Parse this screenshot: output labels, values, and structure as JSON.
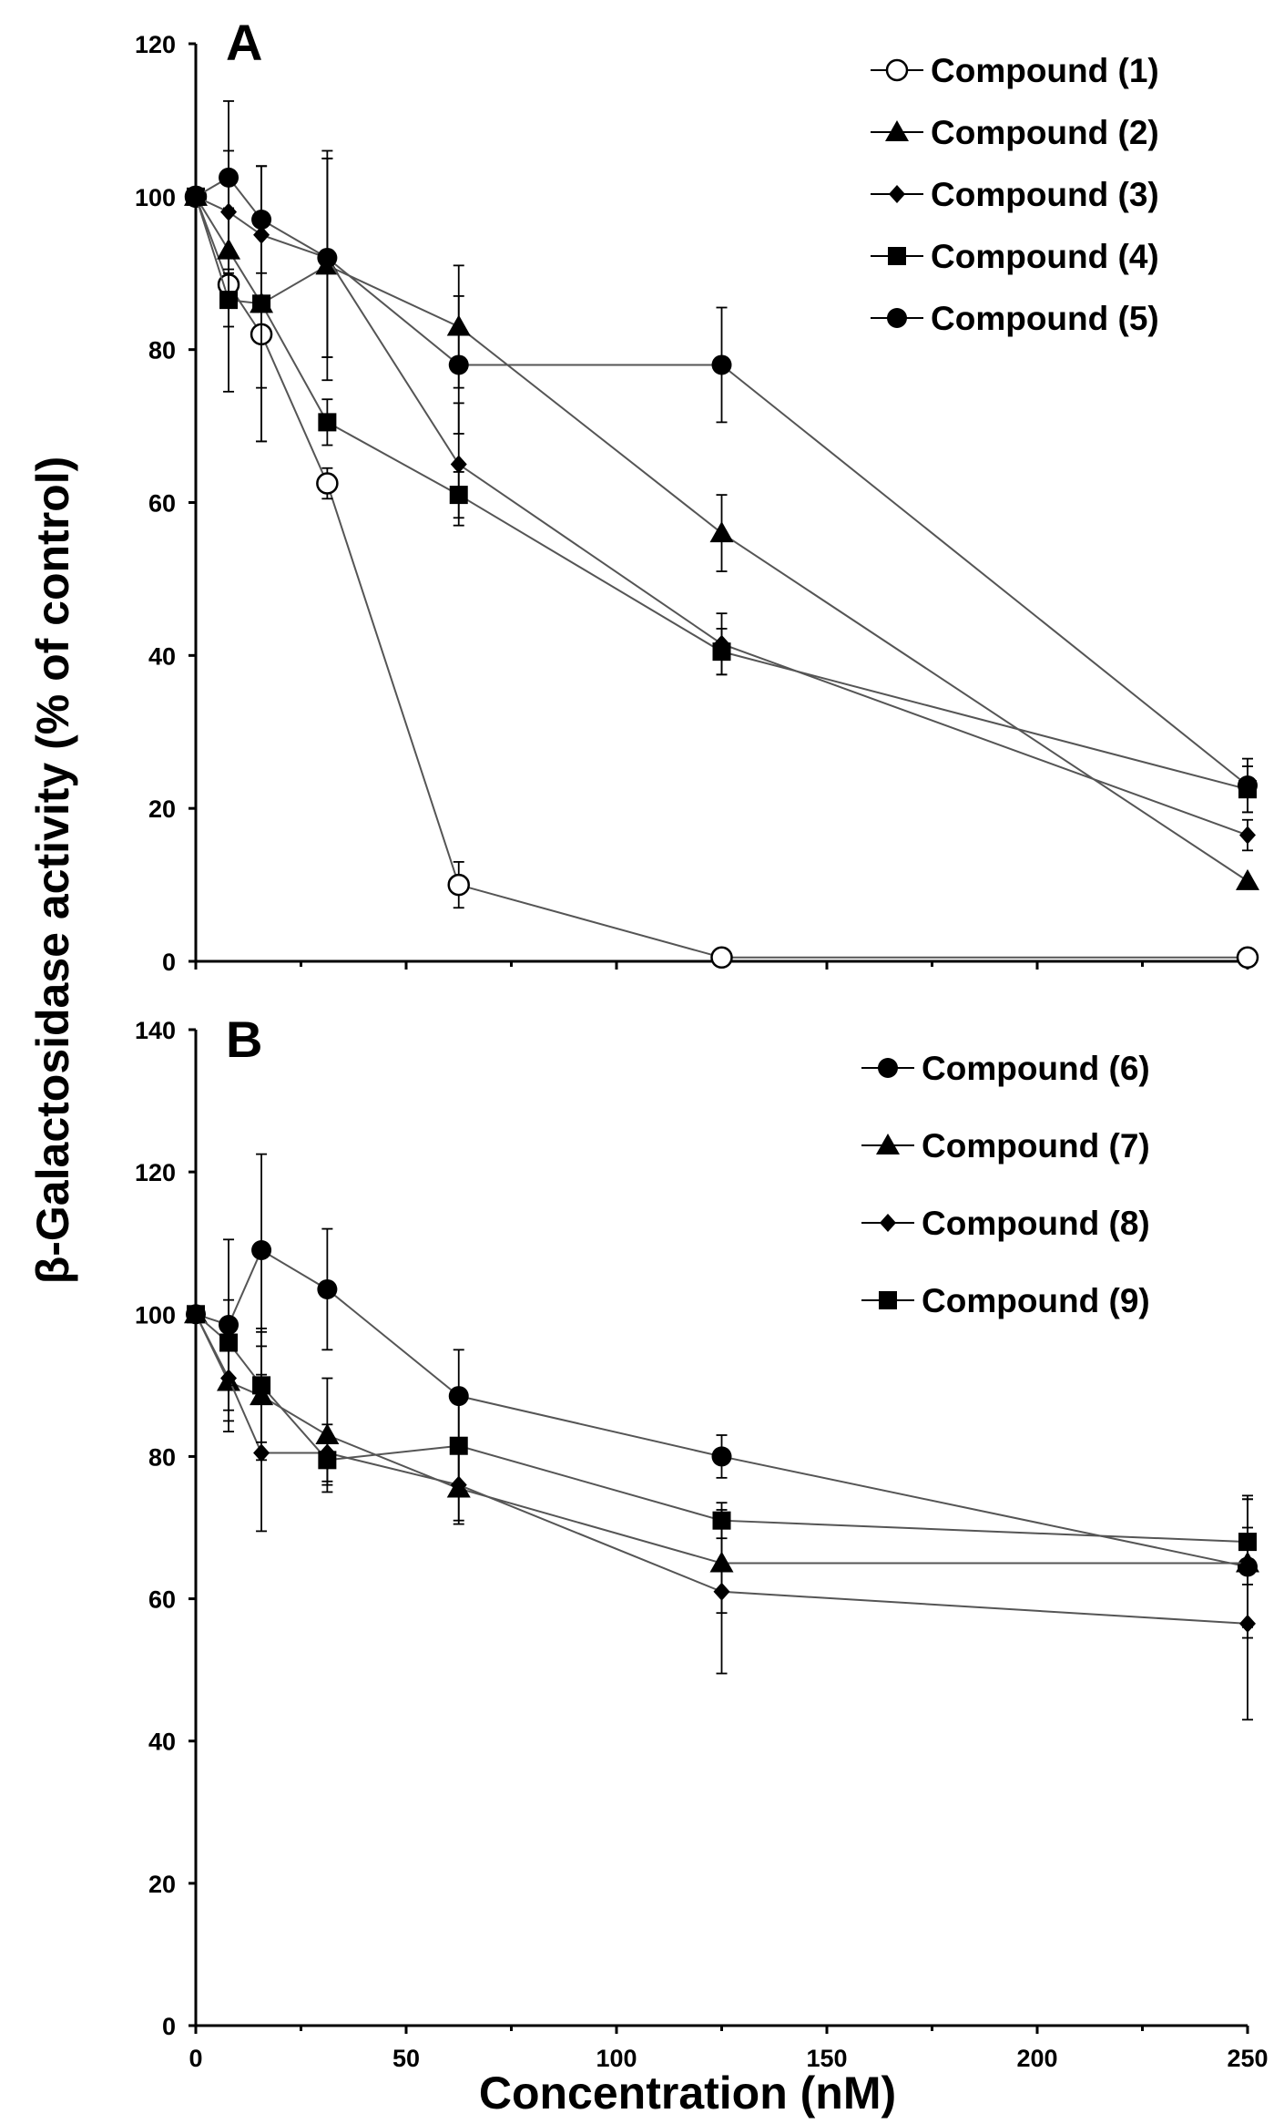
{
  "chart_data": [
    {
      "type": "line",
      "panel_label": "A",
      "xlim": [
        0,
        250
      ],
      "ylim": [
        0,
        120
      ],
      "yticks": [
        0,
        20,
        40,
        60,
        80,
        100,
        120
      ],
      "x": [
        0,
        7.8,
        15.6,
        31.25,
        62.5,
        125,
        250
      ],
      "legend_position": "top-right",
      "series": [
        {
          "name": "Compound (1)",
          "marker": "circle-open",
          "values": [
            100,
            88.5,
            82,
            62.5,
            10,
            0.5,
            0.5
          ],
          "errors": [
            0,
            2,
            14,
            2,
            3,
            0,
            0
          ]
        },
        {
          "name": "Compound (2)",
          "marker": "triangle",
          "values": [
            100,
            93,
            86,
            91,
            83,
            56,
            10.5
          ],
          "errors": [
            0,
            10,
            18,
            15,
            8,
            5,
            0
          ]
        },
        {
          "name": "Compound (3)",
          "marker": "diamond",
          "values": [
            100,
            98,
            95,
            92,
            65,
            41.5,
            16.5
          ],
          "errors": [
            0,
            8,
            9,
            13,
            8,
            4,
            2
          ]
        },
        {
          "name": "Compound (4)",
          "marker": "square",
          "values": [
            100,
            86.5,
            86,
            70.5,
            61,
            40.5,
            22.5
          ],
          "errors": [
            0,
            12,
            11,
            3,
            3,
            3,
            3
          ]
        },
        {
          "name": "Compound (5)",
          "marker": "circle-filled",
          "values": [
            100,
            102.5,
            97,
            92,
            78,
            78,
            23
          ],
          "errors": [
            0,
            10,
            7,
            13,
            9,
            7.5,
            3.5
          ]
        }
      ]
    },
    {
      "type": "line",
      "panel_label": "B",
      "xlim": [
        0,
        250
      ],
      "ylim": [
        0,
        140
      ],
      "yticks": [
        0,
        20,
        40,
        60,
        80,
        100,
        120,
        140
      ],
      "x": [
        0,
        7.8,
        15.6,
        31.25,
        62.5,
        125,
        250
      ],
      "xticks": [
        0,
        50,
        100,
        150,
        200,
        250
      ],
      "legend_position": "top-right",
      "series": [
        {
          "name": "Compound (6)",
          "marker": "circle-filled",
          "values": [
            100,
            98.5,
            109,
            103.5,
            88.5,
            80,
            64.5
          ],
          "errors": [
            0,
            12,
            13.5,
            8.5,
            6.5,
            3,
            10
          ]
        },
        {
          "name": "Compound (7)",
          "marker": "triangle",
          "values": [
            100,
            90.5,
            88.5,
            83,
            75.5,
            65,
            65
          ],
          "errors": [
            0,
            7,
            9,
            8,
            5,
            7,
            9
          ]
        },
        {
          "name": "Compound (8)",
          "marker": "diamond",
          "values": [
            100,
            91,
            80.5,
            80.5,
            76,
            61,
            56.5
          ],
          "errors": [
            0,
            6,
            11,
            4,
            5,
            11.5,
            13.5
          ]
        },
        {
          "name": "Compound (9)",
          "marker": "square",
          "values": [
            100,
            96,
            90,
            79.5,
            81.5,
            71,
            68
          ],
          "errors": [
            0,
            6,
            8,
            3.5,
            6,
            2.5,
            6
          ]
        }
      ]
    }
  ],
  "xlabel": "Concentration (nM)",
  "ylabel": "β-Galactosidase activity (% of control)",
  "colors": {
    "line": "#555555",
    "marker": "#000000",
    "axis": "#000000",
    "background": "#ffffff"
  }
}
